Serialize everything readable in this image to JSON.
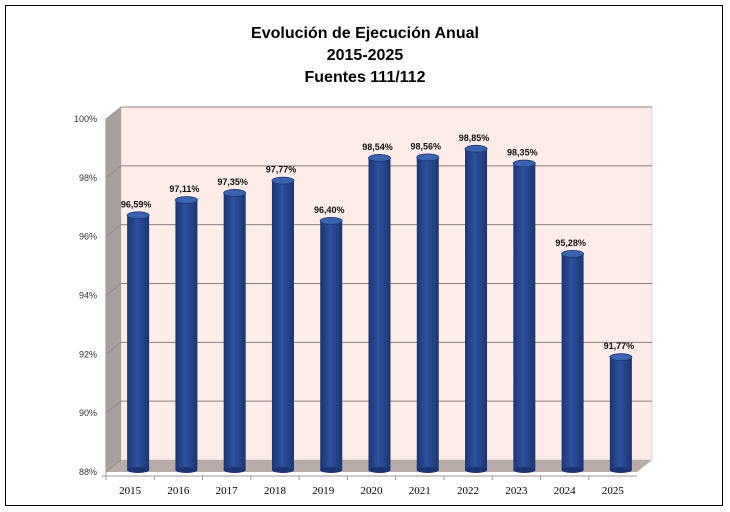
{
  "chart_data": {
    "type": "bar",
    "title": [
      "Evolución de Ejecución Anual",
      "2015-2025",
      "Fuentes 111/112"
    ],
    "categories": [
      "2015",
      "2016",
      "2017",
      "2018",
      "2019",
      "2020",
      "2021",
      "2022",
      "2023",
      "2024",
      "2025"
    ],
    "values": [
      96.59,
      97.11,
      97.35,
      97.77,
      96.4,
      98.54,
      98.56,
      98.85,
      98.35,
      95.28,
      91.77
    ],
    "data_labels": [
      "96,59%",
      "97,11%",
      "97,35%",
      "97,77%",
      "96,40%",
      "98,54%",
      "98,56%",
      "98,85%",
      "98,35%",
      "95,28%",
      "91,77%"
    ],
    "yticks": [
      88,
      90,
      92,
      94,
      96,
      98,
      100
    ],
    "ytick_labels": [
      "88%",
      "90%",
      "92%",
      "94%",
      "96%",
      "98%",
      "100%"
    ],
    "ylim": [
      88,
      100
    ],
    "xlabel": "",
    "ylabel": "",
    "grid": true,
    "colors": {
      "bar": "#2c539e",
      "bar_dark": "#1a3572",
      "wall": "#fdece8",
      "floor": "#b8aca8",
      "side": "#a8a09c"
    }
  }
}
